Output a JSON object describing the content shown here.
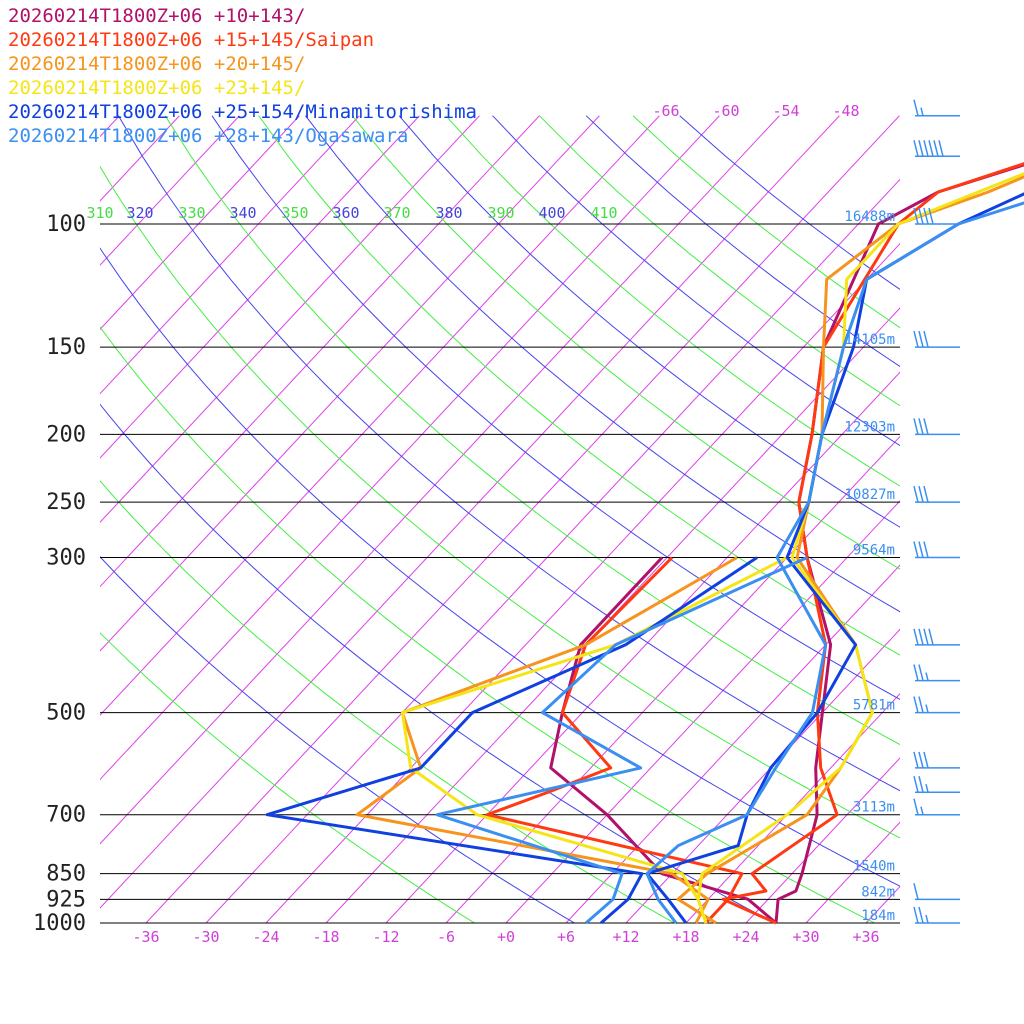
{
  "chart_data": {
    "type": "line",
    "title": "",
    "pressure_levels": [
      1000,
      925,
      850,
      700,
      500,
      300,
      250,
      200,
      150,
      100
    ],
    "pressure_labels": [
      "1000",
      "925",
      "850",
      "700",
      "500",
      "300",
      "250",
      "200",
      "150",
      "100"
    ],
    "heights": [
      {
        "p": 1000,
        "label": "184m"
      },
      {
        "p": 925,
        "label": "842m"
      },
      {
        "p": 850,
        "label": "1540m"
      },
      {
        "p": 700,
        "label": "3113m"
      },
      {
        "p": 500,
        "label": "5781m"
      },
      {
        "p": 300,
        "label": "9564m"
      },
      {
        "p": 250,
        "label": "10827m"
      },
      {
        "p": 200,
        "label": "12303m"
      },
      {
        "p": 150,
        "label": "14105m"
      },
      {
        "p": 100,
        "label": "16488m"
      }
    ],
    "temp_ticks": [
      -36,
      -30,
      -24,
      -18,
      -12,
      -6,
      0,
      6,
      12,
      18,
      24,
      30,
      36
    ],
    "temp_tick_labels": [
      "-36",
      "-30",
      "-24",
      "-18",
      "-12",
      "-6",
      "+0",
      "+6",
      "+12",
      "+18",
      "+24",
      "+30",
      "+36"
    ],
    "upper_temp_labels": [
      "-66",
      "-60",
      "-54",
      "-48"
    ],
    "theta_labels": [
      "310",
      "320",
      "330",
      "340",
      "350",
      "360",
      "370",
      "380",
      "390",
      "400",
      "410"
    ],
    "xlim": [
      -40,
      40
    ],
    "ylim": [
      1000,
      100
    ],
    "series": [
      {
        "name": "20260214T1800Z+06 +10+143/",
        "color": "#b0126a",
        "temperature": [
          [
            1000,
            27.0
          ],
          [
            925,
            25.0
          ],
          [
            900,
            26.0
          ],
          [
            850,
            25.0
          ],
          [
            700,
            21.0
          ],
          [
            600,
            16.5
          ],
          [
            500,
            12.0
          ],
          [
            400,
            6.5
          ],
          [
            300,
            -4.0
          ],
          [
            250,
            -10.0
          ],
          [
            200,
            -15.0
          ],
          [
            150,
            -22.0
          ],
          [
            100,
            -28.0
          ],
          [
            90,
            -25.0
          ],
          [
            70,
            -8.0
          ]
        ],
        "dewpoint": [
          [
            1000,
            27.0
          ],
          [
            925,
            22.0
          ],
          [
            850,
            11.0
          ],
          [
            700,
            0.0
          ],
          [
            600,
            -10.0
          ],
          [
            500,
            -14.0
          ],
          [
            400,
            -18.5
          ],
          [
            300,
            -18.5
          ]
        ]
      },
      {
        "name": "20260214T1800Z+06 +15+145/Saipan",
        "color": "#ff3a12",
        "temperature": [
          [
            1000,
            27.0
          ],
          [
            925,
            19.5
          ],
          [
            900,
            23.0
          ],
          [
            850,
            20.0
          ],
          [
            700,
            23.0
          ],
          [
            600,
            17.0
          ],
          [
            500,
            11.5
          ],
          [
            400,
            6.0
          ],
          [
            300,
            -4.0
          ],
          [
            250,
            -10.0
          ],
          [
            200,
            -15.0
          ],
          [
            150,
            -22.0
          ],
          [
            100,
            -26.0
          ],
          [
            90,
            -25.0
          ],
          [
            70,
            -9.0
          ]
        ],
        "dewpoint": [
          [
            1000,
            20.0
          ],
          [
            925,
            20.0
          ],
          [
            850,
            19.0
          ],
          [
            700,
            -12.0
          ],
          [
            650,
            -8.0
          ],
          [
            600,
            -4.0
          ],
          [
            500,
            -14.0
          ],
          [
            400,
            -18.0
          ],
          [
            300,
            -17.5
          ]
        ]
      },
      {
        "name": "20260214T1800Z+06 +20+145/",
        "color": "#f7941d",
        "temperature": [
          [
            1000,
            21.0
          ],
          [
            925,
            15.0
          ],
          [
            850,
            15.5
          ],
          [
            700,
            20.0
          ],
          [
            600,
            19.0
          ],
          [
            500,
            17.0
          ],
          [
            400,
            9.0
          ],
          [
            300,
            -5.0
          ],
          [
            250,
            -9.0
          ],
          [
            200,
            -14.0
          ],
          [
            150,
            -22.0
          ],
          [
            120,
            -28.0
          ],
          [
            100,
            -26.0
          ],
          [
            90,
            -20.0
          ],
          [
            70,
            -9.0
          ]
        ],
        "dewpoint": [
          [
            1000,
            19.0
          ],
          [
            925,
            18.0
          ],
          [
            850,
            12.0
          ],
          [
            700,
            -25.0
          ],
          [
            600,
            -23.0
          ],
          [
            500,
            -30.0
          ],
          [
            400,
            -18.0
          ],
          [
            300,
            -11.0
          ]
        ]
      },
      {
        "name": "20260214T1800Z+06 +23+145/",
        "color": "#f5e517",
        "temperature": [
          [
            1000,
            20.0
          ],
          [
            925,
            17.0
          ],
          [
            850,
            15.0
          ],
          [
            700,
            18.0
          ],
          [
            600,
            19.0
          ],
          [
            500,
            17.0
          ],
          [
            400,
            9.0
          ],
          [
            300,
            -5.5
          ],
          [
            250,
            -9.0
          ],
          [
            200,
            -14.0
          ],
          [
            150,
            -20.0
          ],
          [
            120,
            -26.0
          ],
          [
            100,
            -26.0
          ],
          [
            90,
            -21.0
          ],
          [
            70,
            -9.0
          ]
        ],
        "dewpoint": [
          [
            1000,
            20.0
          ],
          [
            925,
            17.0
          ],
          [
            850,
            13.0
          ],
          [
            700,
            -13.0
          ],
          [
            600,
            -24.0
          ],
          [
            500,
            -30.0
          ],
          [
            400,
            -15.0
          ],
          [
            300,
            -6.0
          ]
        ]
      },
      {
        "name": "20260214T1800Z+06 +25+154/Minamitorishima",
        "color": "#1040e0",
        "temperature": [
          [
            1000,
            18.0
          ],
          [
            925,
            14.0
          ],
          [
            850,
            9.5
          ],
          [
            775,
            16.0
          ],
          [
            700,
            14.0
          ],
          [
            600,
            12.0
          ],
          [
            500,
            11.5
          ],
          [
            400,
            9.0
          ],
          [
            300,
            -6.0
          ],
          [
            250,
            -9.0
          ],
          [
            200,
            -14.0
          ],
          [
            150,
            -19.0
          ],
          [
            120,
            -24.0
          ],
          [
            100,
            -20.0
          ],
          [
            90,
            -16.0
          ],
          [
            70,
            -8.0
          ]
        ],
        "dewpoint": [
          [
            1000,
            9.5
          ],
          [
            925,
            10.0
          ],
          [
            850,
            9.0
          ],
          [
            700,
            -34.0
          ],
          [
            600,
            -23.0
          ],
          [
            500,
            -23.0
          ],
          [
            400,
            -14.0
          ],
          [
            300,
            -9.0
          ]
        ]
      },
      {
        "name": "20260214T1800Z+06 +28+143/Ogasawara",
        "color": "#3a8ff0",
        "temperature": [
          [
            1000,
            17.0
          ],
          [
            925,
            13.0
          ],
          [
            850,
            9.5
          ],
          [
            775,
            10.0
          ],
          [
            700,
            14.0
          ],
          [
            600,
            12.5
          ],
          [
            500,
            11.0
          ],
          [
            400,
            6.0
          ],
          [
            300,
            -7.0
          ],
          [
            250,
            -9.0
          ],
          [
            200,
            -14.0
          ],
          [
            150,
            -20.0
          ],
          [
            120,
            -24.0
          ],
          [
            100,
            -20.0
          ],
          [
            90,
            -13.0
          ],
          [
            70,
            -8.0
          ]
        ],
        "dewpoint": [
          [
            1000,
            8.0
          ],
          [
            925,
            8.5
          ],
          [
            850,
            7.0
          ],
          [
            700,
            -17.0
          ],
          [
            600,
            -1.0
          ],
          [
            500,
            -16.0
          ],
          [
            400,
            -15.0
          ],
          [
            300,
            -4.0
          ]
        ]
      }
    ],
    "wind_barbs": [
      {
        "p": 70,
        "speed": 15
      },
      {
        "p": 80,
        "speed": 60
      },
      {
        "p": 100,
        "speed": 40
      },
      {
        "p": 150,
        "speed": 30
      },
      {
        "p": 200,
        "speed": 30
      },
      {
        "p": 250,
        "speed": 30
      },
      {
        "p": 300,
        "speed": 30
      },
      {
        "p": 400,
        "speed": 40
      },
      {
        "p": 450,
        "speed": 25
      },
      {
        "p": 500,
        "speed": 25
      },
      {
        "p": 600,
        "speed": 30
      },
      {
        "p": 650,
        "speed": 25
      },
      {
        "p": 700,
        "speed": 15
      },
      {
        "p": 925,
        "speed": 10
      },
      {
        "p": 1000,
        "speed": 25
      }
    ]
  }
}
